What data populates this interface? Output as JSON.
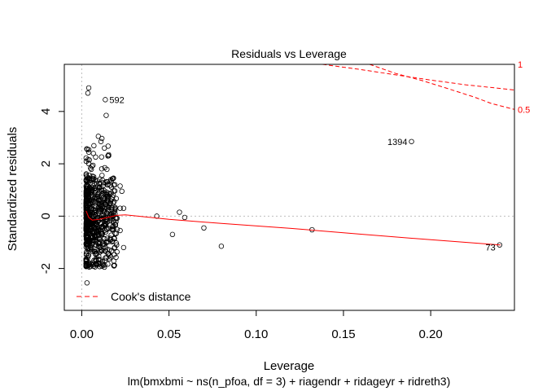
{
  "chart_data": {
    "type": "scatter",
    "title": "Residuals vs Leverage",
    "xlabel": "Leverage",
    "subtitle": "lm(bmxbmi ~ ns(n_pfoa, df = 3) + riagendr + ridageyr + ridreth3)",
    "ylabel": "Standardized residuals",
    "xlim": [
      -0.01,
      0.248
    ],
    "ylim": [
      -3.6,
      5.8
    ],
    "x_ticks": [
      0.0,
      0.05,
      0.1,
      0.15,
      0.2
    ],
    "x_tick_labels": [
      "0.00",
      "0.05",
      "0.10",
      "0.15",
      "0.20"
    ],
    "y_ticks": [
      -2,
      0,
      2,
      4
    ],
    "y_tick_labels": [
      "-2",
      "0",
      "2",
      "4"
    ],
    "colors": {
      "points": "#000000",
      "smooth": "#ff0000",
      "cooks": "#ff0000",
      "reference": "#bebebe"
    },
    "legend": {
      "label": "Cook's distance",
      "position": "bottom-left"
    },
    "cooks_contour_labels": [
      {
        "label": "1",
        "y": 5.8
      },
      {
        "label": "0.5",
        "y": 4.08
      }
    ],
    "cooks_contours": [
      {
        "level": 1,
        "points": [
          [
            0.138,
            5.8
          ],
          [
            0.16,
            5.6
          ],
          [
            0.18,
            5.4
          ],
          [
            0.2,
            5.2
          ],
          [
            0.22,
            5.02
          ],
          [
            0.24,
            4.88
          ],
          [
            0.248,
            4.82
          ]
        ]
      },
      {
        "level": 0.5,
        "points": [
          [
            0.165,
            5.8
          ],
          [
            0.18,
            5.45
          ],
          [
            0.195,
            5.18
          ],
          [
            0.21,
            4.87
          ],
          [
            0.225,
            4.55
          ],
          [
            0.235,
            4.3
          ],
          [
            0.248,
            4.08
          ]
        ]
      },
      {
        "level": 0.5,
        "points": []
      }
    ],
    "smooth_line": [
      [
        0.0025,
        0.2
      ],
      [
        0.004,
        -0.05
      ],
      [
        0.006,
        -0.15
      ],
      [
        0.01,
        -0.12
      ],
      [
        0.015,
        -0.05
      ],
      [
        0.02,
        0.03
      ],
      [
        0.025,
        0.05
      ],
      [
        0.05,
        -0.12
      ],
      [
        0.08,
        -0.28
      ],
      [
        0.12,
        -0.47
      ],
      [
        0.16,
        -0.69
      ],
      [
        0.2,
        -0.9
      ],
      [
        0.24,
        -1.1
      ]
    ],
    "labeled_points": [
      {
        "label": "592",
        "x": 0.0135,
        "y": 4.45
      },
      {
        "label": "1394",
        "x": 0.189,
        "y": 2.85
      },
      {
        "label": "73",
        "x": 0.2395,
        "y": -1.1
      }
    ],
    "points": [
      [
        0.043,
        0.0
      ],
      [
        0.052,
        -0.7
      ],
      [
        0.056,
        0.15
      ],
      [
        0.059,
        -0.05
      ],
      [
        0.07,
        -0.45
      ],
      [
        0.08,
        -1.15
      ],
      [
        0.132,
        -0.52
      ],
      [
        0.189,
        2.85
      ],
      [
        0.2395,
        -1.1
      ],
      [
        0.0135,
        4.45
      ],
      [
        0.014,
        3.85
      ],
      [
        0.004,
        4.9
      ],
      [
        0.0035,
        4.7
      ],
      [
        0.003,
        -2.55
      ],
      [
        0.016,
        -1.5
      ],
      [
        0.02,
        -1.1
      ],
      [
        0.024,
        -1.2
      ],
      [
        0.022,
        0.3
      ],
      [
        0.019,
        0.2
      ],
      [
        0.024,
        0.3
      ],
      [
        0.022,
        -0.55
      ],
      [
        0.023,
        0.95
      ],
      [
        0.022,
        1.15
      ],
      [
        0.015,
        2.3
      ],
      [
        0.013,
        2.6
      ],
      [
        0.011,
        2.85
      ],
      [
        0.0095,
        3.05
      ],
      [
        0.017,
        1.35
      ],
      [
        0.018,
        0.8
      ]
    ]
  }
}
